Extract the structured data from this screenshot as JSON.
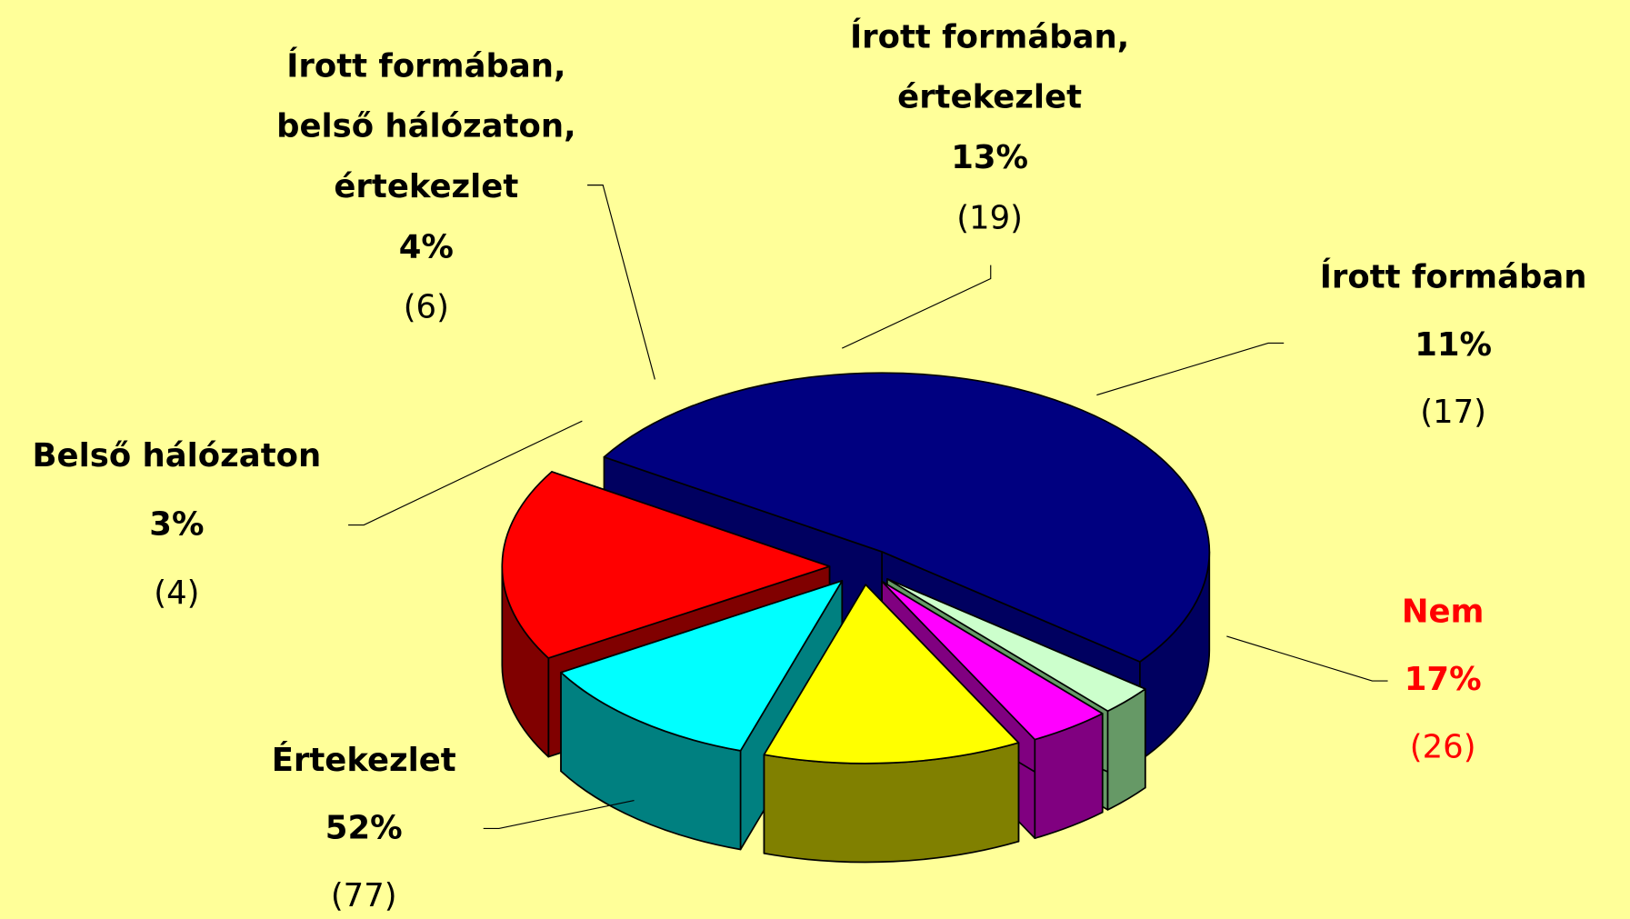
{
  "chart_data": {
    "type": "pie3d",
    "categories": [
      [
        "Értekezlet"
      ],
      [
        "Nem"
      ],
      [
        "Írott formában"
      ],
      [
        "Írott formában,",
        "értekezlet"
      ],
      [
        "Írott formában,",
        "belső hálózaton,",
        "értekezlet"
      ],
      [
        "Belső hálózaton"
      ]
    ],
    "values": [
      52,
      17,
      11,
      13,
      4,
      3
    ],
    "value_labels": [
      "52%",
      "17%",
      "11%",
      "13%",
      "4%",
      "3%"
    ],
    "counts": [
      77,
      26,
      17,
      19,
      6,
      4
    ],
    "count_labels": [
      "(77)",
      "(26)",
      "(17)",
      "(19)",
      "(6)",
      "(4)"
    ],
    "colors": [
      "#000080",
      "#ff0000",
      "#00ffff",
      "#ffff00",
      "#ff00ff",
      "#ccffcc"
    ],
    "side_colors": [
      "#000060",
      "#800000",
      "#008080",
      "#808000",
      "#800080",
      "#669966"
    ],
    "label_colors": [
      "#000000",
      "#ff0000",
      "#000000",
      "#000000",
      "#000000",
      "#000000"
    ]
  }
}
